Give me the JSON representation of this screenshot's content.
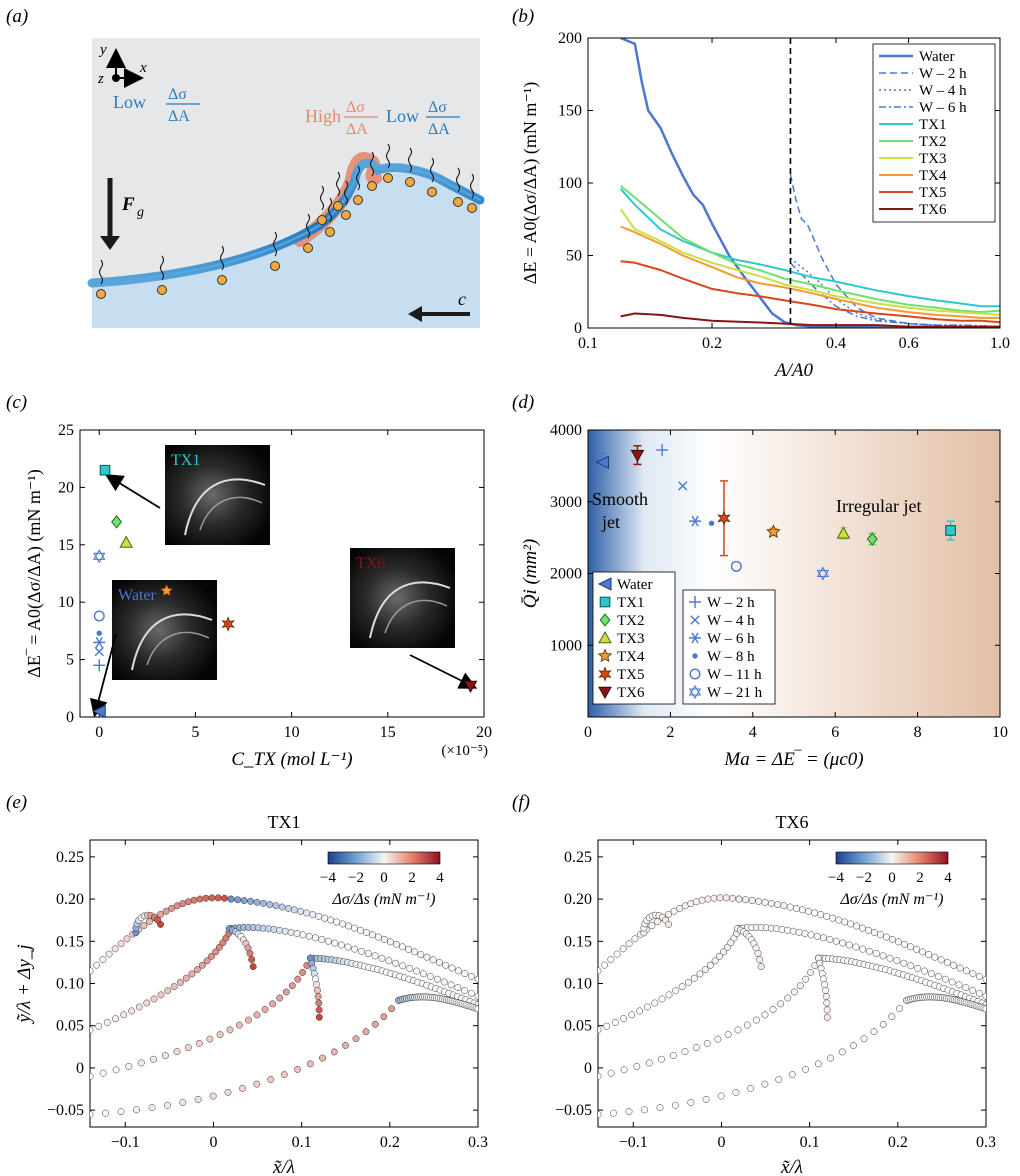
{
  "panel_labels": {
    "a": "(a)",
    "b": "(b)",
    "c": "(c)",
    "d": "(d)",
    "e": "(e)",
    "f": "(f)"
  },
  "panel_a": {
    "axis_y": "y",
    "axis_x": "x",
    "axis_z": "z",
    "low_left": "Low",
    "high": "High",
    "low_right": "Low",
    "frac_num": "Δσ",
    "frac_den": "ΔA",
    "force_label": "F",
    "force_sub": "g",
    "wave_speed": "c",
    "colors": {
      "bg_top": "#e6e7e8",
      "liquid": "#c6def0",
      "low": "#2b7bbd",
      "high": "#e8896a",
      "particle": "#f2a93b"
    }
  },
  "chart_data": [
    {
      "id": "b",
      "type": "line",
      "xlabel": "A/A0",
      "ylabel": "ΔE = A0(Δσ/ΔA) (mN m⁻¹)",
      "xscale": "log",
      "xlim": [
        0.1,
        1.0
      ],
      "ylim": [
        0,
        200
      ],
      "xticks": [
        0.1,
        0.2,
        0.4,
        0.6,
        1.0
      ],
      "xtick_labels": [
        "0.1",
        "0.2",
        "0.4",
        "0.6",
        "1.0"
      ],
      "yticks": [
        0,
        50,
        100,
        150,
        200
      ],
      "ytick_labels": [
        "0",
        "50",
        "100",
        "150",
        "200"
      ],
      "vline_x": 0.31,
      "legend_position": "top-right",
      "series": [
        {
          "name": "Water",
          "color": "#4a78d2",
          "style": "solid",
          "width": 2.5,
          "x": [
            0.12,
            0.13,
            0.135,
            0.14,
            0.15,
            0.16,
            0.17,
            0.18,
            0.19,
            0.2,
            0.22,
            0.24,
            0.26,
            0.28,
            0.3,
            0.32,
            0.35,
            0.4,
            0.5,
            0.6,
            0.8,
            1.0
          ],
          "y": [
            200,
            196,
            170,
            150,
            138,
            120,
            105,
            92,
            85,
            72,
            50,
            35,
            22,
            10,
            4,
            2,
            1,
            1,
            1,
            0.5,
            0.5,
            0.5
          ]
        },
        {
          "name": "W – 2 h",
          "color": "#4a78d2",
          "style": "dash",
          "width": 1.5,
          "x": [
            0.31,
            0.32,
            0.33,
            0.34,
            0.35,
            0.37,
            0.4,
            0.45,
            0.5,
            0.6,
            0.7,
            0.8,
            0.9,
            1.0
          ],
          "y": [
            106,
            88,
            75,
            72,
            64,
            48,
            30,
            14,
            7,
            3,
            2,
            1,
            1,
            1
          ]
        },
        {
          "name": "W – 4 h",
          "color": "#4a78d2",
          "style": "dot",
          "width": 1.5,
          "x": [
            0.31,
            0.33,
            0.36,
            0.4,
            0.45,
            0.5,
            0.6,
            0.7,
            0.8,
            1.0
          ],
          "y": [
            48,
            42,
            33,
            20,
            10,
            6,
            3,
            2,
            2,
            1
          ]
        },
        {
          "name": "W – 6 h",
          "color": "#4a78d2",
          "style": "dashdot",
          "width": 1.5,
          "x": [
            0.31,
            0.33,
            0.36,
            0.4,
            0.45,
            0.5,
            0.6,
            0.7,
            0.8,
            1.0
          ],
          "y": [
            45,
            37,
            26,
            15,
            8,
            5,
            3,
            2,
            2,
            1
          ]
        },
        {
          "name": "TX1",
          "color": "#2ec8cc",
          "style": "solid",
          "width": 2,
          "x": [
            0.12,
            0.13,
            0.15,
            0.17,
            0.2,
            0.23,
            0.26,
            0.3,
            0.35,
            0.4,
            0.5,
            0.6,
            0.7,
            0.8,
            0.9,
            1.0
          ],
          "y": [
            96,
            85,
            68,
            60,
            52,
            47,
            44,
            40,
            35,
            32,
            26,
            22,
            19,
            17,
            15,
            15
          ]
        },
        {
          "name": "TX2",
          "color": "#6de06d",
          "style": "solid",
          "width": 2,
          "x": [
            0.12,
            0.13,
            0.15,
            0.17,
            0.2,
            0.23,
            0.26,
            0.3,
            0.35,
            0.4,
            0.5,
            0.6,
            0.7,
            0.8,
            0.9,
            1.0
          ],
          "y": [
            98,
            90,
            75,
            62,
            52,
            44,
            40,
            34,
            30,
            26,
            20,
            16,
            14,
            12,
            11,
            12
          ]
        },
        {
          "name": "TX3",
          "color": "#c8e040",
          "style": "solid",
          "width": 2,
          "x": [
            0.12,
            0.13,
            0.15,
            0.17,
            0.2,
            0.23,
            0.26,
            0.3,
            0.35,
            0.4,
            0.5,
            0.6,
            0.7,
            0.8,
            0.9,
            1.0
          ],
          "y": [
            82,
            68,
            60,
            52,
            45,
            40,
            36,
            30,
            26,
            22,
            17,
            14,
            12,
            11,
            10,
            9
          ]
        },
        {
          "name": "TX4",
          "color": "#f49a32",
          "style": "solid",
          "width": 2,
          "x": [
            0.12,
            0.13,
            0.15,
            0.17,
            0.2,
            0.23,
            0.26,
            0.3,
            0.35,
            0.4,
            0.5,
            0.6,
            0.7,
            0.8,
            0.9,
            1.0
          ],
          "y": [
            70,
            66,
            58,
            50,
            42,
            35,
            31,
            28,
            24,
            20,
            14,
            11,
            9,
            8,
            7,
            7
          ]
        },
        {
          "name": "TX5",
          "color": "#d8461a",
          "style": "solid",
          "width": 2,
          "x": [
            0.12,
            0.13,
            0.15,
            0.17,
            0.2,
            0.23,
            0.26,
            0.3,
            0.35,
            0.4,
            0.5,
            0.6,
            0.7,
            0.8,
            0.9,
            1.0
          ],
          "y": [
            46,
            45,
            40,
            34,
            27,
            24,
            22,
            19,
            16,
            13,
            10,
            8,
            6,
            5,
            5,
            4
          ]
        },
        {
          "name": "TX6",
          "color": "#8a1414",
          "style": "solid",
          "width": 2,
          "x": [
            0.12,
            0.13,
            0.15,
            0.17,
            0.2,
            0.25,
            0.3,
            0.35,
            0.4,
            0.5,
            0.6,
            0.7,
            0.8,
            0.9,
            1.0
          ],
          "y": [
            8,
            10,
            9,
            7,
            5,
            4,
            3,
            2,
            2,
            2,
            1,
            1,
            1,
            1,
            1
          ]
        }
      ]
    },
    {
      "id": "c",
      "type": "scatter",
      "xlabel": "C_TX (mol L⁻¹)",
      "x_multiplier": "(×10⁻⁵)",
      "ylabel": "ΔE‾ = A0(Δσ/ΔA) (mN m⁻¹)",
      "xlim": [
        -1,
        20
      ],
      "ylim": [
        0,
        25
      ],
      "xticks": [
        0,
        5,
        10,
        15,
        20
      ],
      "xtick_labels": [
        "0",
        "5",
        "10",
        "15",
        "20"
      ],
      "yticks": [
        0,
        5,
        10,
        15,
        20,
        25
      ],
      "ytick_labels": [
        "0",
        "5",
        "10",
        "15",
        "20",
        "25"
      ],
      "points": [
        {
          "name": "Water",
          "x": 0.0,
          "y": 0.5,
          "marker": "tri-left",
          "color": "#4a78d2"
        },
        {
          "name": "TX1",
          "x": 0.3,
          "y": 21.5,
          "marker": "square",
          "color": "#2ec8cc"
        },
        {
          "name": "TX2",
          "x": 0.9,
          "y": 17.0,
          "marker": "diamond",
          "color": "#6de06d"
        },
        {
          "name": "TX3",
          "x": 1.4,
          "y": 15.2,
          "marker": "tri-up",
          "color": "#c8e040"
        },
        {
          "name": "TX4",
          "x": 3.5,
          "y": 11.0,
          "marker": "star5",
          "color": "#f49a32"
        },
        {
          "name": "TX5",
          "x": 6.7,
          "y": 8.1,
          "marker": "star6",
          "color": "#d8461a"
        },
        {
          "name": "TX6",
          "x": 19.3,
          "y": 2.7,
          "marker": "tri-down",
          "color": "#8a1414"
        },
        {
          "name": "W – 2 h",
          "x": 0.0,
          "y": 4.5,
          "marker": "plus",
          "color": "#4a78d2"
        },
        {
          "name": "W – 4 h",
          "x": 0.0,
          "y": 5.7,
          "marker": "cross",
          "color": "#4a78d2"
        },
        {
          "name": "W – 6 h",
          "x": 0.0,
          "y": 6.5,
          "marker": "asterisk",
          "color": "#4a78d2"
        },
        {
          "name": "W – 8 h",
          "x": 0.0,
          "y": 7.3,
          "marker": "dot",
          "color": "#4a78d2"
        },
        {
          "name": "W – 11 h",
          "x": 0.0,
          "y": 8.8,
          "marker": "circle",
          "color": "#4a78d2"
        },
        {
          "name": "W – 21 h",
          "x": 0.0,
          "y": 14.0,
          "marker": "hexagram",
          "color": "#4a78d2"
        }
      ],
      "insets": [
        {
          "label": "TX1",
          "color": "#2ec8cc"
        },
        {
          "label": "Water",
          "color": "#4a78d2"
        },
        {
          "label": "TX6",
          "color": "#8a1414"
        }
      ]
    },
    {
      "id": "d",
      "type": "scatter",
      "xlabel": "Ma = ΔE‾ = (μc0)",
      "ylabel": "Q̄i (mm²)",
      "xlim": [
        0,
        10
      ],
      "ylim": [
        0,
        4000
      ],
      "xticks": [
        0,
        2,
        4,
        6,
        8,
        10
      ],
      "xtick_labels": [
        "0",
        "2",
        "4",
        "6",
        "8",
        "10"
      ],
      "yticks": [
        1000,
        2000,
        3000,
        4000
      ],
      "ytick_labels": [
        "1000",
        "2000",
        "3000",
        "4000"
      ],
      "regions": [
        "Smooth",
        "jet",
        "Irregular jet"
      ],
      "points": [
        {
          "name": "Water",
          "x": 0.35,
          "y": 3550,
          "err": 130,
          "marker": "tri-left",
          "color": "#4a78d2"
        },
        {
          "name": "TX1",
          "x": 8.8,
          "y": 2600,
          "err": 130,
          "marker": "square",
          "color": "#2ec8cc"
        },
        {
          "name": "TX2",
          "x": 6.9,
          "y": 2480,
          "err": 80,
          "marker": "diamond",
          "color": "#6de06d"
        },
        {
          "name": "TX3",
          "x": 6.2,
          "y": 2560,
          "err": 80,
          "marker": "tri-up",
          "color": "#c8e040"
        },
        {
          "name": "TX4",
          "x": 4.5,
          "y": 2580,
          "err": 50,
          "marker": "star5",
          "color": "#f49a32"
        },
        {
          "name": "TX5",
          "x": 3.3,
          "y": 2770,
          "err": 520,
          "marker": "star6",
          "color": "#d8461a"
        },
        {
          "name": "TX6",
          "x": 1.2,
          "y": 3650,
          "err": 130,
          "marker": "tri-down",
          "color": "#8a1414"
        },
        {
          "name": "W – 2 h",
          "x": 1.8,
          "y": 3720,
          "err": 0,
          "marker": "plus",
          "color": "#4a78d2"
        },
        {
          "name": "W – 4 h",
          "x": 2.3,
          "y": 3220,
          "err": 0,
          "marker": "cross",
          "color": "#4a78d2"
        },
        {
          "name": "W – 6 h",
          "x": 2.6,
          "y": 2730,
          "err": 0,
          "marker": "asterisk",
          "color": "#4a78d2"
        },
        {
          "name": "W – 8 h",
          "x": 3.0,
          "y": 2700,
          "err": 0,
          "marker": "dot",
          "color": "#4a78d2"
        },
        {
          "name": "W – 11 h",
          "x": 3.6,
          "y": 2100,
          "err": 0,
          "marker": "circle",
          "color": "#4a78d2"
        },
        {
          "name": "W – 21 h",
          "x": 5.7,
          "y": 2000,
          "err": 0,
          "marker": "hexagram",
          "color": "#4a78d2"
        }
      ],
      "legend1": [
        "Water",
        "TX1",
        "TX2",
        "TX3",
        "TX4",
        "TX5",
        "TX6"
      ],
      "legend2": [
        "W – 2 h",
        "W – 4 h",
        "W – 6 h",
        "W – 8 h",
        "W – 11 h",
        "W – 21 h"
      ]
    },
    {
      "id": "e",
      "type": "scatter",
      "title": "TX1",
      "xlabel": "x̃/λ",
      "ylabel": "ỹ/λ + Δy_j",
      "xlim": [
        -0.14,
        0.3
      ],
      "ylim": [
        -0.07,
        0.27
      ],
      "xticks": [
        -0.1,
        0,
        0.1,
        0.2,
        0.3
      ],
      "xtick_labels": [
        "−0.1",
        "0",
        "0.1",
        "0.2",
        "0.3"
      ],
      "yticks": [
        -0.05,
        0,
        0.05,
        0.1,
        0.15,
        0.2,
        0.25
      ],
      "ytick_labels": [
        "−0.05",
        "0",
        "0.05",
        "0.10",
        "0.15",
        "0.20",
        "0.25"
      ],
      "colorbar": {
        "label": "Δσ/Δs (mN m⁻¹)",
        "ticks": [
          "−4",
          "−2",
          "0",
          "2",
          "4"
        ],
        "range": [
          -4,
          4
        ]
      },
      "intensity": 1.0
    },
    {
      "id": "f",
      "type": "scatter",
      "title": "TX6",
      "xlabel": "x̃/λ",
      "ylabel": "",
      "xlim": [
        -0.14,
        0.3
      ],
      "ylim": [
        -0.07,
        0.27
      ],
      "xticks": [
        -0.1,
        0,
        0.1,
        0.2,
        0.3
      ],
      "xtick_labels": [
        "−0.1",
        "0",
        "0.1",
        "0.2",
        "0.3"
      ],
      "yticks": [
        -0.05,
        0,
        0.05,
        0.1,
        0.15,
        0.2,
        0.25
      ],
      "ytick_labels": [
        "−0.05",
        "0",
        "0.05",
        "0.10",
        "0.15",
        "0.20",
        "0.25"
      ],
      "colorbar": {
        "label": "Δσ/Δs (mN m⁻¹)",
        "ticks": [
          "−4",
          "−2",
          "0",
          "2",
          "4"
        ],
        "range": [
          -4,
          4
        ]
      },
      "intensity": 0.12
    }
  ]
}
